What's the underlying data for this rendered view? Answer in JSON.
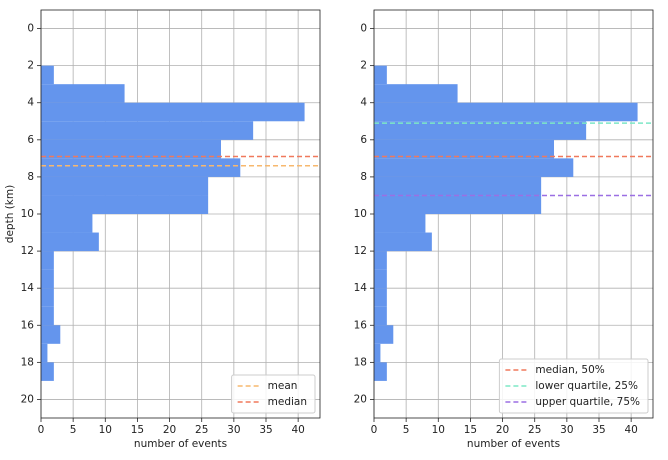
{
  "chart_data": [
    {
      "type": "histogram",
      "orientation": "horizontal",
      "xlabel": "number of events",
      "ylabel": "depth (km)",
      "bins": [
        2,
        3,
        4,
        5,
        6,
        7,
        8,
        9,
        10,
        11,
        12,
        13,
        14,
        15,
        16,
        17,
        18,
        19
      ],
      "values": [
        2,
        13,
        41,
        33,
        28,
        31,
        26,
        26,
        8,
        9,
        2,
        2,
        2,
        2,
        3,
        1,
        2
      ],
      "color": "#6495ed",
      "lines": [
        {
          "name": "mean",
          "color": "#f7b86e",
          "value": 7.4
        },
        {
          "name": "median",
          "color": "#f0795c",
          "value": 6.9
        }
      ],
      "xlim": [
        0,
        43.4
      ],
      "xticks": [
        0,
        5,
        10,
        15,
        20,
        25,
        30,
        35,
        40
      ],
      "ylim": [
        21,
        -1
      ],
      "yticks": [
        0,
        2,
        4,
        6,
        8,
        10,
        12,
        14,
        16,
        18,
        20
      ],
      "grid": true,
      "legend": "lower right"
    },
    {
      "type": "histogram",
      "orientation": "horizontal",
      "xlabel": "number of events",
      "bins": [
        2,
        3,
        4,
        5,
        6,
        7,
        8,
        9,
        10,
        11,
        12,
        13,
        14,
        15,
        16,
        17,
        18,
        19
      ],
      "values": [
        2,
        13,
        41,
        33,
        28,
        31,
        26,
        26,
        8,
        9,
        2,
        2,
        2,
        2,
        3,
        1,
        2
      ],
      "color": "#6495ed",
      "lines": [
        {
          "name": "median, 50%",
          "color": "#f0795c",
          "value": 6.9
        },
        {
          "name": "lower quartile, 25%",
          "color": "#7de8c6",
          "value": 5.1
        },
        {
          "name": "upper quartile, 75%",
          "color": "#9b6fe3",
          "value": 9.0
        }
      ],
      "xlim": [
        0,
        43.4
      ],
      "xticks": [
        0,
        5,
        10,
        15,
        20,
        25,
        30,
        35,
        40
      ],
      "ylim": [
        21,
        -1
      ],
      "yticks": [
        0,
        2,
        4,
        6,
        8,
        10,
        12,
        14,
        16,
        18,
        20
      ],
      "grid": true,
      "legend": "lower right"
    }
  ]
}
